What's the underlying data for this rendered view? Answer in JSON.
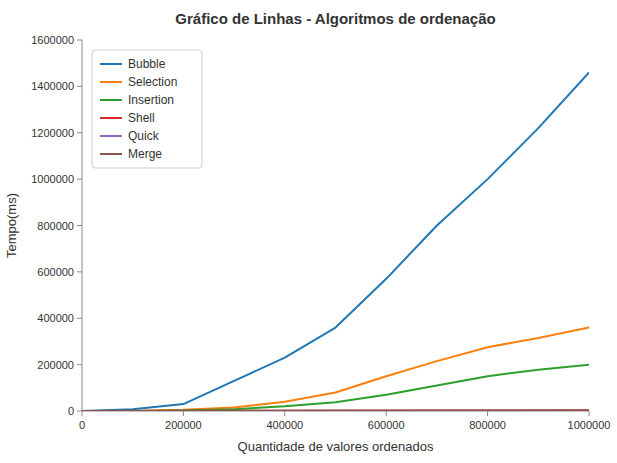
{
  "chart_data": {
    "type": "line",
    "title": "Gráfico de Linhas - Algoritmos de ordenação",
    "x_label": "Quantidade de valores ordenados",
    "y_label": "Tempo(ms)",
    "xlim": [
      0,
      1000000
    ],
    "xticks": [
      0,
      200000,
      400000,
      600000,
      800000,
      1000000
    ],
    "ylim": [
      0,
      1600000
    ],
    "yticks": [
      0,
      200000,
      400000,
      600000,
      800000,
      1000000,
      1200000,
      1400000,
      1600000
    ],
    "grid": false,
    "legend": "upper-left",
    "series": [
      {
        "name": "Bubble",
        "color": "#1f77b4",
        "x": [
          0,
          100000,
          200000,
          300000,
          400000,
          500000,
          600000,
          700000,
          800000,
          900000,
          1000000
        ],
        "values": [
          0,
          8000,
          30000,
          130000,
          230000,
          360000,
          570000,
          800000,
          1000000,
          1220000,
          1460000
        ]
      },
      {
        "name": "Selection",
        "color": "#ff7f0e",
        "x": [
          0,
          100000,
          200000,
          300000,
          400000,
          500000,
          600000,
          700000,
          800000,
          900000,
          1000000
        ],
        "values": [
          0,
          0,
          5000,
          15000,
          40000,
          80000,
          150000,
          215000,
          275000,
          315000,
          360000
        ]
      },
      {
        "name": "Insertion",
        "color": "#2ca02c",
        "x": [
          0,
          100000,
          200000,
          300000,
          400000,
          500000,
          600000,
          700000,
          800000,
          900000,
          1000000
        ],
        "values": [
          0,
          0,
          2000,
          8000,
          20000,
          38000,
          70000,
          110000,
          150000,
          178000,
          200000
        ]
      },
      {
        "name": "Shell",
        "color": "#d62728",
        "x": [
          0,
          1000000
        ],
        "values": [
          0,
          3000
        ]
      },
      {
        "name": "Quick",
        "color": "#9467bd",
        "x": [
          0,
          1000000
        ],
        "values": [
          0,
          1000
        ]
      },
      {
        "name": "Merge",
        "color": "#8c564b",
        "x": [
          0,
          1000000
        ],
        "values": [
          0,
          2000
        ]
      }
    ]
  }
}
